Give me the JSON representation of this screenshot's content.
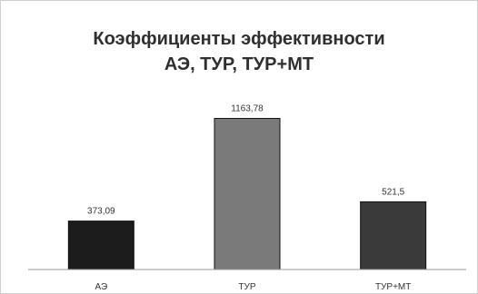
{
  "chart_data": {
    "type": "bar",
    "title_lines": [
      "Коэффициенты эффективности",
      "АЭ, ТУР, ТУР+МТ"
    ],
    "categories": [
      "АЭ",
      "ТУР",
      "ТУР+МТ"
    ],
    "values": [
      373.09,
      1163.78,
      521.5
    ],
    "value_labels": [
      "373,09",
      "1163,78",
      "521,5"
    ],
    "bar_colors": [
      "#1c1c1c",
      "#7a7a7a",
      "#3a3a3a"
    ],
    "xlabel": "",
    "ylabel": "",
    "ylim": [
      0,
      1300
    ],
    "grid": false,
    "legend": "none"
  }
}
